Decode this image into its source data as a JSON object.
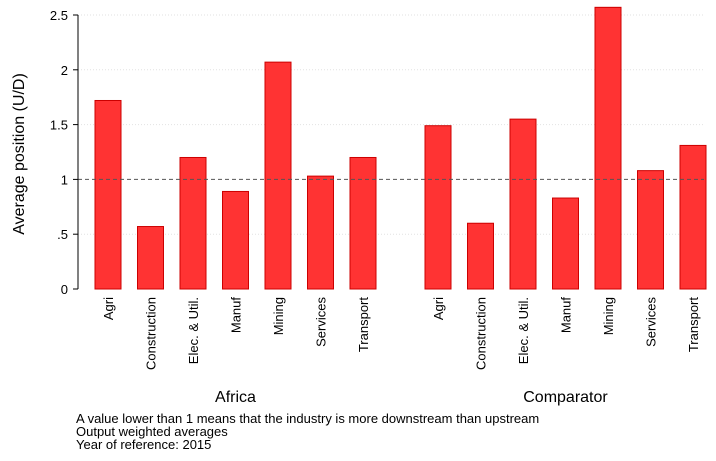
{
  "chart_data": {
    "type": "bar",
    "ylabel": "Average position (U/D)",
    "ylim": [
      0,
      2.5
    ],
    "yticks": [
      {
        "value": 0,
        "label": "0"
      },
      {
        "value": 0.5,
        "label": ".5"
      },
      {
        "value": 1,
        "label": "1"
      },
      {
        "value": 1.5,
        "label": "1.5"
      },
      {
        "value": 2,
        "label": "2"
      },
      {
        "value": 2.5,
        "label": "2.5"
      }
    ],
    "reference_line": 1,
    "grid": true,
    "bar_color": "#ff3333",
    "bar_edge_color": "#cc0000",
    "categories": [
      "Agri",
      "Construction",
      "Elec. & Util.",
      "Manuf",
      "Mining",
      "Services",
      "Transport"
    ],
    "groups": [
      {
        "name": "Africa",
        "values": [
          1.72,
          0.57,
          1.2,
          0.89,
          2.07,
          1.03,
          1.2
        ]
      },
      {
        "name": "Comparator",
        "values": [
          1.49,
          0.6,
          1.55,
          0.83,
          2.57,
          1.08,
          1.31
        ]
      }
    ]
  },
  "notes": [
    "A value lower than 1 means that the industry is more downstream than upstream",
    "Output weighted averages",
    "Year of reference: 2015"
  ]
}
